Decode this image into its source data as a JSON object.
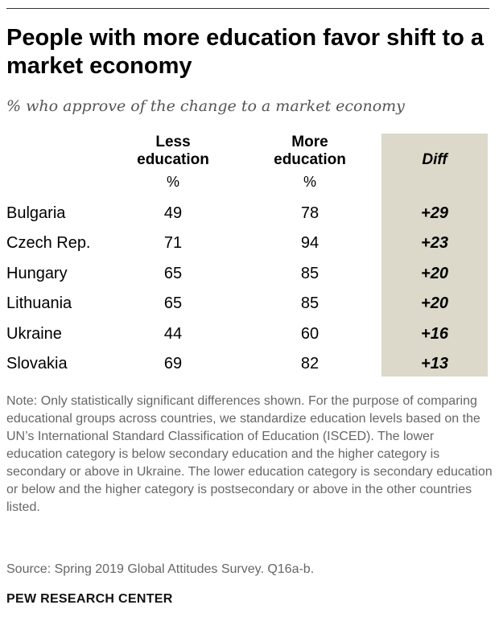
{
  "title": "People with more education favor shift to a market economy",
  "subtitle": "% who approve of the change to a market economy",
  "chart_data": {
    "type": "table",
    "columns": {
      "less": "Less education",
      "more": "More education",
      "diff": "Diff",
      "unit": "%"
    },
    "rows": [
      {
        "country": "Bulgaria",
        "less": 49,
        "more": 78,
        "diff": "+29"
      },
      {
        "country": "Czech Rep.",
        "less": 71,
        "more": 94,
        "diff": "+23"
      },
      {
        "country": "Hungary",
        "less": 65,
        "more": 85,
        "diff": "+20"
      },
      {
        "country": "Lithuania",
        "less": 65,
        "more": 85,
        "diff": "+20"
      },
      {
        "country": "Ukraine",
        "less": 44,
        "more": 60,
        "diff": "+16"
      },
      {
        "country": "Slovakia",
        "less": 69,
        "more": 82,
        "diff": "+13"
      }
    ]
  },
  "colors": {
    "diff_background": "#dcd8ca",
    "note_text": "#666666"
  },
  "note": "Note: Only statistically significant differences shown. For the purpose of comparing educational groups across countries, we standardize education levels based on the UN’s International Standard Classification of Education (ISCED). The lower education category is below secondary education and the higher category is secondary or above in Ukraine. The lower education category is secondary education or below and the higher category is postsecondary or above in the other countries listed.",
  "source": "Source: Spring 2019 Global Attitudes Survey. Q16a-b.",
  "brand": "PEW RESEARCH CENTER"
}
